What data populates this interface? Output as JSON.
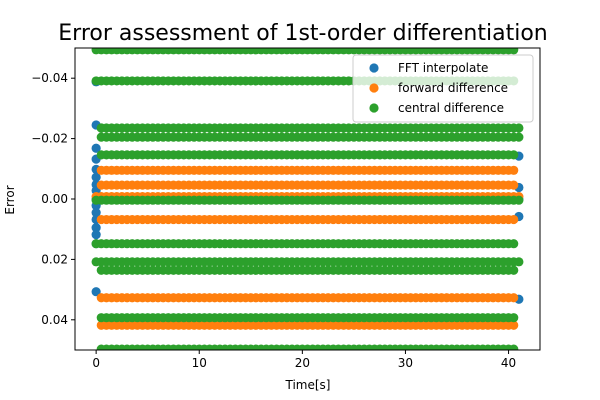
{
  "chart_data": {
    "type": "scatter",
    "title": "Error assessment of 1st-order differentiation",
    "xlabel": "Time[s]",
    "ylabel": "Error",
    "xlim": [
      -2.05,
      43.05
    ],
    "ylim": [
      0.05,
      -0.05
    ],
    "y_inverted": true,
    "x_ticks": [
      0,
      10,
      20,
      30,
      40
    ],
    "x_tick_labels": [
      "0",
      "10",
      "20",
      "30",
      "40"
    ],
    "y_ticks": [
      -0.04,
      -0.02,
      0.0,
      0.02,
      0.04
    ],
    "y_tick_labels": [
      "−0.04",
      "−0.02",
      "0.00",
      "0.02",
      "0.04"
    ],
    "grid": false,
    "legend_position": "upper-right",
    "time_sampling": {
      "start": 0,
      "end": 41,
      "step": 0.5
    },
    "series": [
      {
        "name": "FFT interpolate",
        "color": "#1f77b4",
        "description_values": "nonzero only near t=0 and t=41; ~0 elsewhere",
        "points": [
          [
            0,
            -0.0388
          ],
          [
            0,
            -0.0245
          ],
          [
            0,
            -0.0168
          ],
          [
            0,
            -0.0132
          ],
          [
            0,
            -0.0098
          ],
          [
            0,
            -0.0072
          ],
          [
            0,
            -0.0048
          ],
          [
            0,
            -0.0028
          ],
          [
            0,
            0.0022
          ],
          [
            0,
            0.0045
          ],
          [
            0,
            0.0068
          ],
          [
            0,
            0.0095
          ],
          [
            0,
            0.0118
          ],
          [
            0,
            0.0148
          ],
          [
            0,
            0.0307
          ],
          [
            41,
            0.0332
          ],
          [
            41,
            -0.0142
          ],
          [
            41,
            -0.0038
          ],
          [
            41,
            0.0058
          ]
        ]
      },
      {
        "name": "forward difference",
        "color": "#ff7f0e",
        "levels": [
          -0.0095,
          -0.0046,
          0.0068,
          0.0327,
          0.0418
        ]
      },
      {
        "name": "central difference",
        "color": "#2ca02c",
        "levels": [
          -0.0494,
          -0.0391,
          -0.0235,
          -0.0205,
          -0.0146,
          0.0148,
          0.0208,
          0.0236,
          0.0393,
          0.0497
        ]
      }
    ]
  }
}
